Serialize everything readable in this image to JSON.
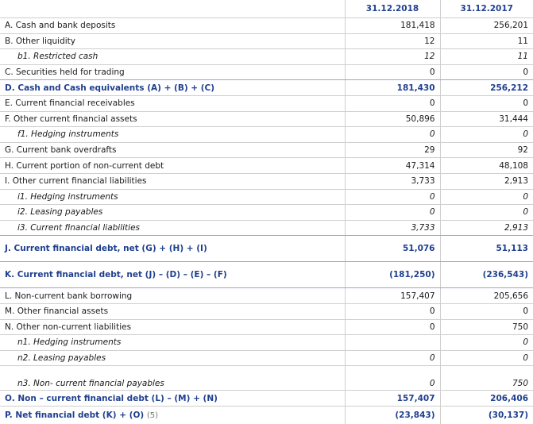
{
  "table": {
    "headers": [
      "31.12.2018",
      "31.12.2017"
    ],
    "rows": [
      [
        "A. Cash and bank deposits",
        "181,418",
        "256,201"
      ],
      [
        "B. Other liquidity",
        "12",
        "11"
      ],
      [
        "b1. Restricted cash",
        "12",
        "11"
      ],
      [
        "C. Securities held for trading",
        "0",
        "0"
      ],
      [
        "D. Cash and Cash equivalents (A) + (B) + (C)",
        "181,430",
        "256,212"
      ],
      [
        "E. Current financial receivables",
        "0",
        "0"
      ],
      [
        "F. Other current financial assets",
        "50,896",
        "31,444"
      ],
      [
        "f1.  Hedging instruments",
        "0",
        "0"
      ],
      [
        "G. Current bank overdrafts",
        "29",
        "92"
      ],
      [
        "H. Current portion of non-current debt",
        "47,314",
        "48,108"
      ],
      [
        "I. Other current financial liabilities",
        "3,733",
        "2,913"
      ],
      [
        "i1. Hedging instruments",
        "0",
        "0"
      ],
      [
        "i2. Leasing payables",
        "0",
        "0"
      ],
      [
        "i3. Current financial liabilities",
        "3,733",
        "2,913"
      ],
      [
        "J. Current financial debt, net (G) + (H) + (I)",
        "51,076",
        "51,113"
      ],
      [
        "K. Current financial debt, net (J) – (D) – (E) – (F)",
        "(181,250)",
        "(236,543)"
      ],
      [
        "L. Non-current bank borrowing",
        "157,407",
        "205,656"
      ],
      [
        "M. Other financial assets",
        "0",
        "0"
      ],
      [
        "N. Other non-current liabilities",
        "0",
        "750"
      ],
      [
        "n1.  Hedging instruments",
        null,
        "0"
      ],
      [
        "n2.  Leasing payables",
        "0",
        "0"
      ],
      [
        "n3. Non- current financial payables",
        "0",
        "750"
      ],
      [
        "O. Non – current financial debt (L) – (M) + (N)",
        "157,407",
        "206,406"
      ],
      [
        "P. Net financial debt (K) + (O)",
        "(23,843)",
        "(30,137)"
      ]
    ],
    "note": "(5)"
  }
}
